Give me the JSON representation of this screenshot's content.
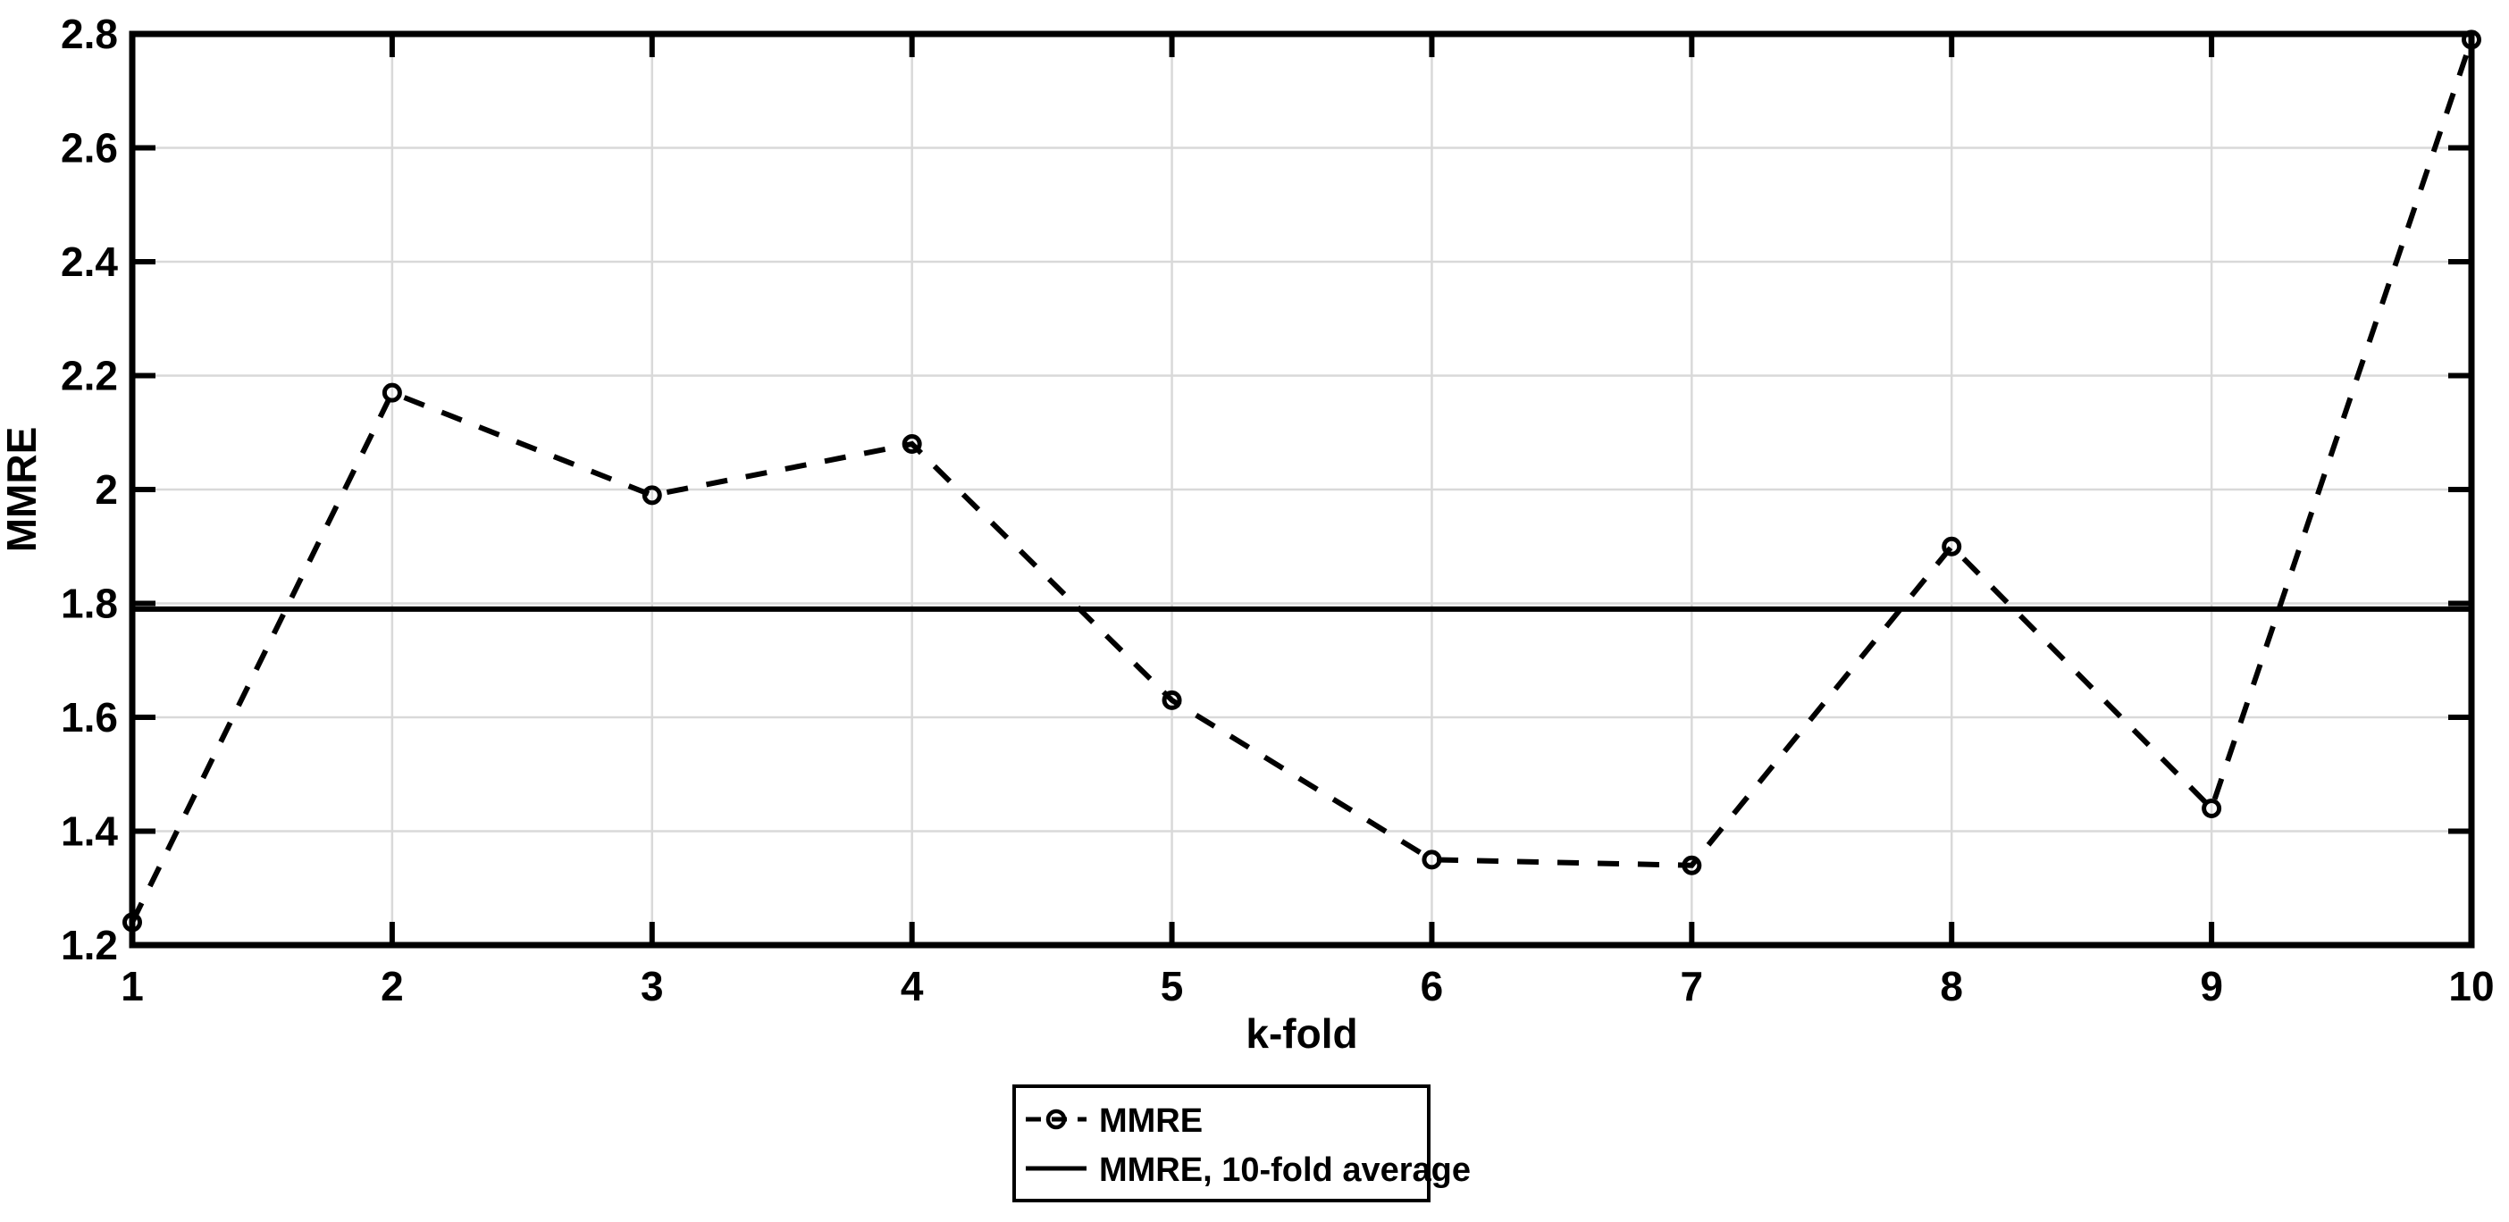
{
  "chart_data": {
    "type": "line",
    "title": "",
    "xlabel": "k-fold",
    "ylabel": "MMRE",
    "x": [
      1,
      2,
      3,
      4,
      5,
      6,
      7,
      8,
      9,
      10
    ],
    "series": [
      {
        "name": "MMRE",
        "style": "dashed",
        "marker": "open-circle",
        "values": [
          1.24,
          2.17,
          1.99,
          2.08,
          1.63,
          1.35,
          1.34,
          1.9,
          1.44,
          2.79
        ]
      },
      {
        "name": "MMRE, 10-fold average",
        "style": "solid",
        "marker": "none",
        "constant": 1.79
      }
    ],
    "xlim": [
      1,
      10
    ],
    "ylim": [
      1.2,
      2.8
    ],
    "xticks": [
      1,
      2,
      3,
      4,
      5,
      6,
      7,
      8,
      9,
      10
    ],
    "yticks": [
      1.2,
      1.4,
      1.6,
      1.8,
      2,
      2.2,
      2.4,
      2.6,
      2.8
    ],
    "xtick_labels": [
      "1",
      "2",
      "3",
      "4",
      "5",
      "6",
      "7",
      "8",
      "9",
      "10"
    ],
    "ytick_labels": [
      "1.2",
      "1.4",
      "1.6",
      "1.8",
      "2",
      "2.2",
      "2.4",
      "2.6",
      "2.8"
    ],
    "grid": true,
    "legend_position": "below-center",
    "colors": {
      "line": "#000000",
      "grid": "#d9d9d9",
      "background": "#ffffff"
    }
  }
}
